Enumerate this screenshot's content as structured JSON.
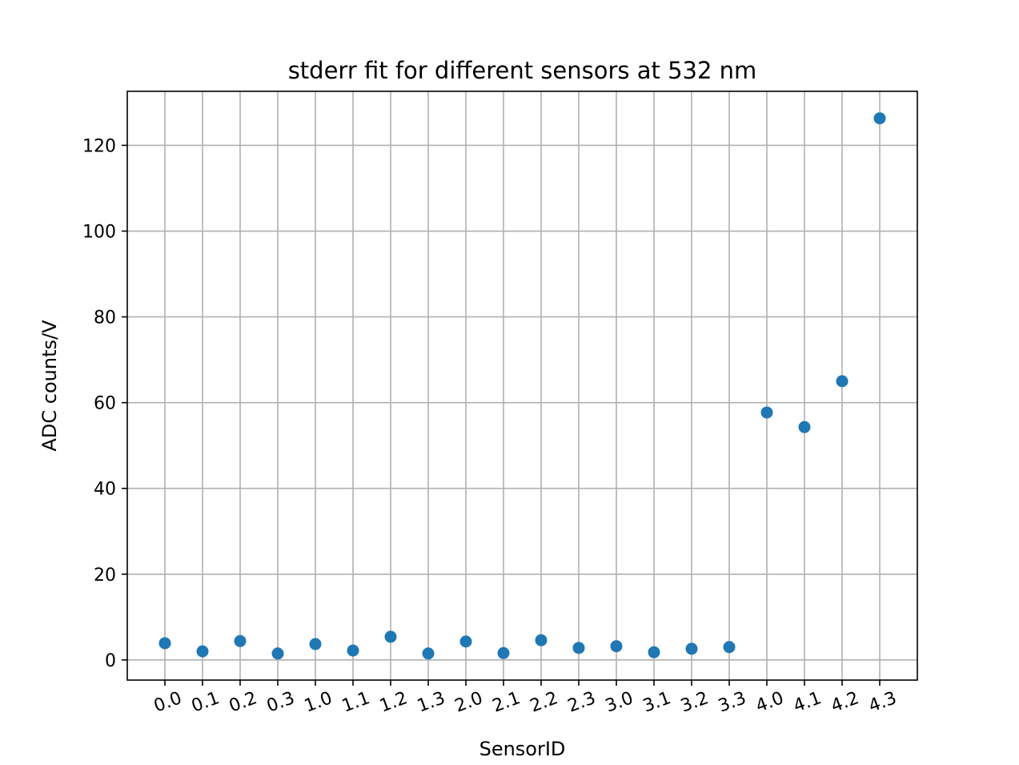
{
  "chart_data": {
    "type": "scatter",
    "title": "stderr fit for different sensors at 532 nm",
    "xlabel": "SensorID",
    "ylabel": "ADC counts/V",
    "categories": [
      "0.0",
      "0.1",
      "0.2",
      "0.3",
      "1.0",
      "1.1",
      "1.2",
      "1.3",
      "2.0",
      "2.1",
      "2.2",
      "2.3",
      "3.0",
      "3.1",
      "3.2",
      "3.3",
      "4.0",
      "4.1",
      "4.2",
      "4.3"
    ],
    "values": [
      3.9,
      2.0,
      4.4,
      1.5,
      3.7,
      2.2,
      5.4,
      1.5,
      4.3,
      1.6,
      4.6,
      2.8,
      3.2,
      1.8,
      2.6,
      3.0,
      57.7,
      54.3,
      65.0,
      126.3
    ],
    "yticks": [
      0,
      20,
      40,
      60,
      80,
      100,
      120
    ],
    "ylim": [
      -4.7,
      132.6
    ],
    "grid": true,
    "marker_color": "#1f77b4",
    "xtick_rotation_deg": -20
  }
}
